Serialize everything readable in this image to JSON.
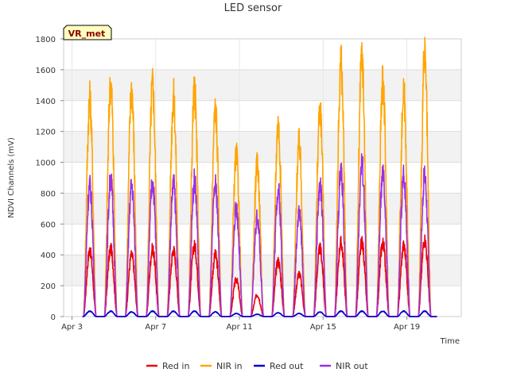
{
  "chart_data": {
    "type": "line",
    "title": "LED sensor",
    "ylabel": "NDVI Channels (mV)",
    "xlabel": "Time",
    "ylim": [
      0,
      1800
    ],
    "yticks": [
      0,
      200,
      400,
      600,
      800,
      1000,
      1200,
      1400,
      1600,
      1800
    ],
    "xlim_days": [
      2.6,
      21.6
    ],
    "xticks": [
      {
        "day": 3,
        "label": "Apr 3"
      },
      {
        "day": 7,
        "label": "Apr 7"
      },
      {
        "day": 11,
        "label": "Apr 11"
      },
      {
        "day": 15,
        "label": "Apr 15"
      },
      {
        "day": 19,
        "label": "Apr 19"
      }
    ],
    "grid": true,
    "background_bands": true,
    "legend_position": "bottom",
    "annotation": "VR_met",
    "series": [
      {
        "name": "Red in",
        "color": "#ee0000",
        "daily_peaks": [
          430,
          440,
          400,
          440,
          430,
          460,
          400,
          240,
          140,
          360,
          280,
          440,
          480,
          480,
          480,
          460,
          500
        ]
      },
      {
        "name": "NIR in",
        "color": "#ffa500",
        "daily_peaks": [
          1410,
          1510,
          1470,
          1500,
          1420,
          1460,
          1340,
          1040,
          980,
          1240,
          1120,
          1350,
          1640,
          1680,
          1510,
          1440,
          1670
        ]
      },
      {
        "name": "Red out",
        "color": "#0000cc",
        "daily_peaks": [
          35,
          35,
          30,
          35,
          35,
          35,
          30,
          20,
          15,
          25,
          20,
          30,
          35,
          35,
          35,
          35,
          35
        ]
      },
      {
        "name": "NIR out",
        "color": "#9a30e8",
        "daily_peaks": [
          850,
          890,
          850,
          870,
          860,
          880,
          850,
          700,
          640,
          820,
          680,
          850,
          940,
          990,
          920,
          910,
          910
        ]
      }
    ],
    "peak_days": [
      3.85,
      4.85,
      5.85,
      6.85,
      7.85,
      8.85,
      9.85,
      10.85,
      11.85,
      12.85,
      13.85,
      14.85,
      15.85,
      16.85,
      17.85,
      18.85,
      19.85
    ]
  }
}
